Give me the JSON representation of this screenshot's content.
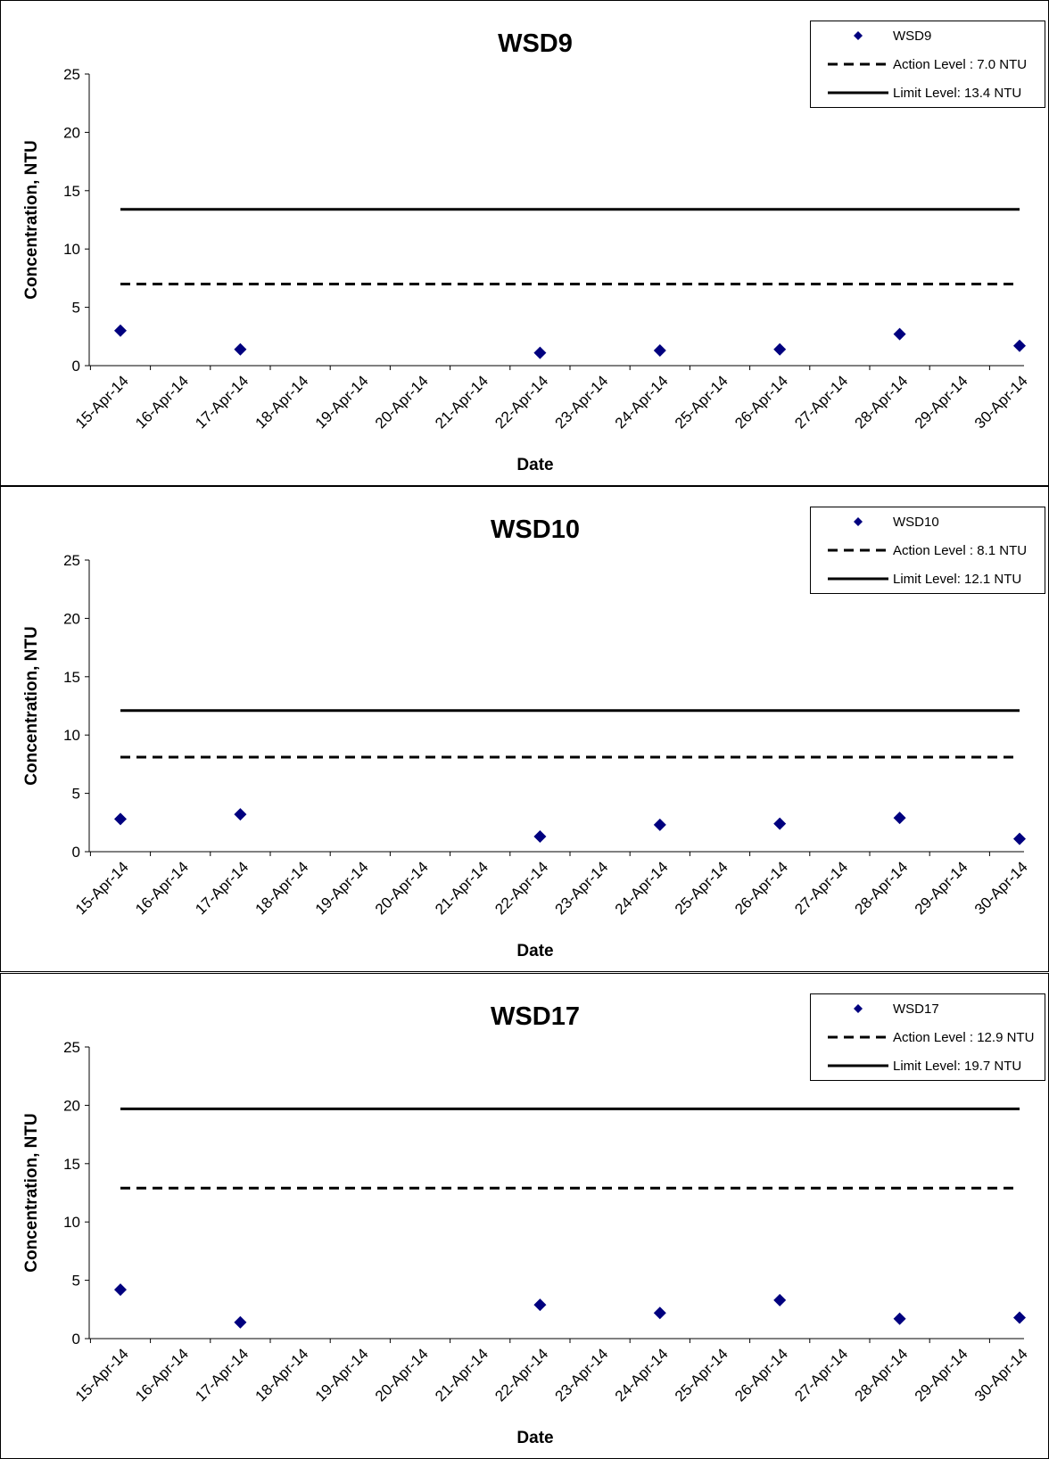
{
  "chart_data": [
    {
      "type": "scatter",
      "title": "WSD9",
      "xlabel": "Date",
      "ylabel": "Concentration, NTU",
      "ylim": [
        0,
        25
      ],
      "yticks": [
        0,
        5,
        10,
        15,
        20,
        25
      ],
      "categories": [
        "15-Apr-14",
        "16-Apr-14",
        "17-Apr-14",
        "18-Apr-14",
        "19-Apr-14",
        "20-Apr-14",
        "21-Apr-14",
        "22-Apr-14",
        "23-Apr-14",
        "24-Apr-14",
        "25-Apr-14",
        "26-Apr-14",
        "27-Apr-14",
        "28-Apr-14",
        "29-Apr-14",
        "30-Apr-14"
      ],
      "legend_position": "top-right",
      "series": [
        {
          "name": "WSD9",
          "kind": "points",
          "color": "#00007f",
          "x": [
            "15-Apr-14",
            "17-Apr-14",
            "22-Apr-14",
            "24-Apr-14",
            "26-Apr-14",
            "28-Apr-14",
            "30-Apr-14"
          ],
          "values": [
            3.0,
            1.4,
            1.1,
            1.3,
            1.4,
            2.7,
            1.7
          ]
        },
        {
          "name": "Action Level : 7.0 NTU",
          "kind": "dashed-line",
          "color": "#000000",
          "value": 7.0
        },
        {
          "name": "Limit Level: 13.4 NTU",
          "kind": "solid-line",
          "color": "#000000",
          "value": 13.4
        }
      ]
    },
    {
      "type": "scatter",
      "title": "WSD10",
      "xlabel": "Date",
      "ylabel": "Concentration, NTU",
      "ylim": [
        0,
        25
      ],
      "yticks": [
        0,
        5,
        10,
        15,
        20,
        25
      ],
      "categories": [
        "15-Apr-14",
        "16-Apr-14",
        "17-Apr-14",
        "18-Apr-14",
        "19-Apr-14",
        "20-Apr-14",
        "21-Apr-14",
        "22-Apr-14",
        "23-Apr-14",
        "24-Apr-14",
        "25-Apr-14",
        "26-Apr-14",
        "27-Apr-14",
        "28-Apr-14",
        "29-Apr-14",
        "30-Apr-14"
      ],
      "legend_position": "top-right",
      "series": [
        {
          "name": "WSD10",
          "kind": "points",
          "color": "#00007f",
          "x": [
            "15-Apr-14",
            "17-Apr-14",
            "22-Apr-14",
            "24-Apr-14",
            "26-Apr-14",
            "28-Apr-14",
            "30-Apr-14"
          ],
          "values": [
            2.8,
            3.2,
            1.3,
            2.3,
            2.4,
            2.9,
            1.1
          ]
        },
        {
          "name": "Action Level : 8.1 NTU",
          "kind": "dashed-line",
          "color": "#000000",
          "value": 8.1
        },
        {
          "name": "Limit Level: 12.1 NTU",
          "kind": "solid-line",
          "color": "#000000",
          "value": 12.1
        }
      ]
    },
    {
      "type": "scatter",
      "title": "WSD17",
      "xlabel": "Date",
      "ylabel": "Concentration, NTU",
      "ylim": [
        0,
        25
      ],
      "yticks": [
        0,
        5,
        10,
        15,
        20,
        25
      ],
      "categories": [
        "15-Apr-14",
        "16-Apr-14",
        "17-Apr-14",
        "18-Apr-14",
        "19-Apr-14",
        "20-Apr-14",
        "21-Apr-14",
        "22-Apr-14",
        "23-Apr-14",
        "24-Apr-14",
        "25-Apr-14",
        "26-Apr-14",
        "27-Apr-14",
        "28-Apr-14",
        "29-Apr-14",
        "30-Apr-14"
      ],
      "legend_position": "top-right",
      "series": [
        {
          "name": "WSD17",
          "kind": "points",
          "color": "#00007f",
          "x": [
            "15-Apr-14",
            "17-Apr-14",
            "22-Apr-14",
            "24-Apr-14",
            "26-Apr-14",
            "28-Apr-14",
            "30-Apr-14"
          ],
          "values": [
            4.2,
            1.4,
            2.9,
            2.2,
            3.3,
            1.7,
            1.8
          ]
        },
        {
          "name": "Action Level : 12.9 NTU",
          "kind": "dashed-line",
          "color": "#000000",
          "value": 12.9
        },
        {
          "name": "Limit Level: 19.7 NTU",
          "kind": "solid-line",
          "color": "#000000",
          "value": 19.7
        }
      ]
    }
  ]
}
